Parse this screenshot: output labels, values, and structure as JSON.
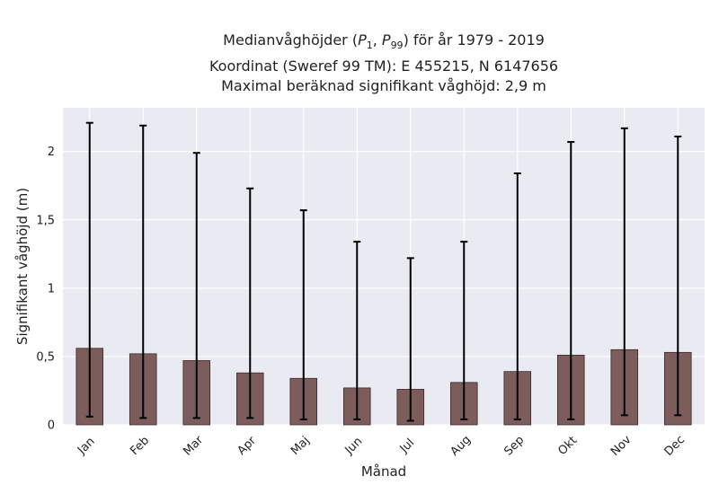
{
  "chart_data": {
    "type": "bar",
    "title": "Medianvåghöjder (P1, P99) för år 1979 - 2019",
    "title_lines": [
      "Medianvåghöjder (P1, P99) för år 1979 - 2019",
      "Koordinat (Sweref 99 TM): E 455215, N 6147656",
      "Maximal beräknad signifikant våghöjd: 2,9 m"
    ],
    "xlabel": "Månad",
    "ylabel": "Signifikant våghöjd (m)",
    "categories": [
      "Jan",
      "Feb",
      "Mar",
      "Apr",
      "Maj",
      "Jun",
      "Jul",
      "Aug",
      "Sep",
      "Okt",
      "Nov",
      "Dec"
    ],
    "series": [
      {
        "values": [
          0.56,
          0.52,
          0.47,
          0.38,
          0.34,
          0.27,
          0.26,
          0.31,
          0.39,
          0.51,
          0.55,
          0.53
        ],
        "error_low": [
          0.06,
          0.05,
          0.05,
          0.05,
          0.04,
          0.04,
          0.03,
          0.04,
          0.04,
          0.04,
          0.07,
          0.07
        ],
        "error_high": [
          2.21,
          2.19,
          1.99,
          1.73,
          1.57,
          1.34,
          1.22,
          1.34,
          1.84,
          2.07,
          2.17,
          2.11
        ]
      }
    ],
    "yticks": [
      0,
      0.5,
      1,
      1.5,
      2
    ],
    "ytick_labels": [
      "0",
      "0,5",
      "1",
      "1,5",
      "2"
    ],
    "ylim": [
      0,
      2.32
    ],
    "grid": true,
    "colors": {
      "bar": "#7d5c5c",
      "bar_edge": "#3a2a2a",
      "error_bar": "#000000",
      "plot_background": "#eaeaf2",
      "grid": "#ffffff"
    }
  }
}
